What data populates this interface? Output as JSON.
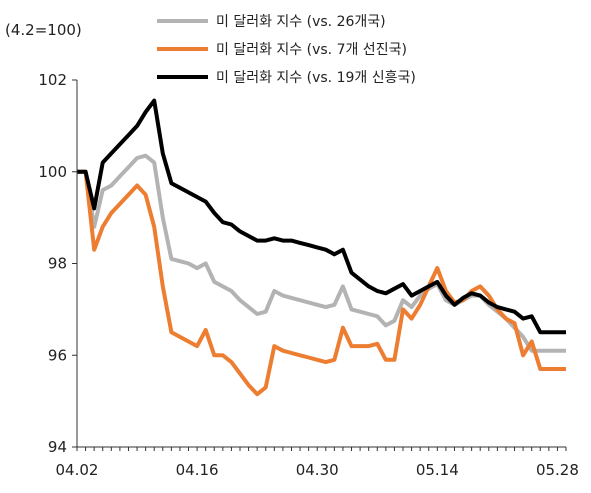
{
  "chart_data": {
    "type": "line",
    "unit_label": "(4.2=100)",
    "x": [
      "04.02",
      "04.03",
      "04.04",
      "04.05",
      "04.06",
      "04.07",
      "04.08",
      "04.09",
      "04.10",
      "04.11",
      "04.12",
      "04.13",
      "04.14",
      "04.15",
      "04.16",
      "04.17",
      "04.18",
      "04.19",
      "04.20",
      "04.21",
      "04.22",
      "04.23",
      "04.24",
      "04.25",
      "04.26",
      "04.27",
      "04.28",
      "04.29",
      "04.30",
      "05.01",
      "05.02",
      "05.03",
      "05.04",
      "05.05",
      "05.06",
      "05.07",
      "05.08",
      "05.09",
      "05.10",
      "05.11",
      "05.12",
      "05.13",
      "05.14",
      "05.15",
      "05.16",
      "05.17",
      "05.18",
      "05.19",
      "05.20",
      "05.21",
      "05.22",
      "05.23",
      "05.24",
      "05.25",
      "05.26",
      "05.27",
      "05.28",
      "05.29"
    ],
    "x_tick_labels": [
      "04.02",
      "04.16",
      "04.30",
      "05.14",
      "05.28"
    ],
    "ylim": [
      94,
      102
    ],
    "y_ticks": [
      94,
      96,
      98,
      100,
      102
    ],
    "series": [
      {
        "name": "미 달러화 지수 (vs. 26개국)",
        "color": "#b3b3b3",
        "values": [
          100.0,
          100.0,
          98.8,
          99.6,
          99.7,
          99.9,
          100.1,
          100.3,
          100.35,
          100.2,
          99.0,
          98.1,
          98.05,
          98.0,
          97.9,
          98.0,
          97.6,
          97.5,
          97.4,
          97.2,
          97.05,
          96.9,
          96.95,
          97.4,
          97.3,
          97.25,
          97.2,
          97.15,
          97.1,
          97.05,
          97.1,
          97.5,
          97.0,
          96.95,
          96.9,
          96.85,
          96.65,
          96.75,
          97.2,
          97.05,
          97.3,
          97.45,
          97.55,
          97.2,
          97.1,
          97.2,
          97.3,
          97.3,
          97.1,
          96.95,
          96.8,
          96.6,
          96.4,
          96.1,
          96.1,
          96.1,
          96.1,
          96.1
        ]
      },
      {
        "name": "미 달러화 지수 (vs. 7개 선진국)",
        "color": "#ed7d31",
        "values": [
          100.0,
          100.0,
          98.3,
          98.8,
          99.1,
          99.3,
          99.5,
          99.7,
          99.5,
          98.8,
          97.5,
          96.5,
          96.4,
          96.3,
          96.2,
          96.55,
          96.0,
          96.0,
          95.85,
          95.6,
          95.35,
          95.15,
          95.3,
          96.2,
          96.1,
          96.05,
          96.0,
          95.95,
          95.9,
          95.85,
          95.9,
          96.6,
          96.2,
          96.2,
          96.2,
          96.25,
          95.9,
          95.9,
          97.0,
          96.8,
          97.1,
          97.5,
          97.9,
          97.4,
          97.15,
          97.2,
          97.4,
          97.5,
          97.3,
          97.0,
          96.8,
          96.7,
          96.0,
          96.3,
          95.7,
          95.7,
          95.7,
          95.7
        ]
      },
      {
        "name": "미 달러화 지수 (vs. 19개 신흥국)",
        "color": "#000000",
        "values": [
          100.0,
          100.0,
          99.2,
          100.2,
          100.4,
          100.6,
          100.8,
          101.0,
          101.3,
          101.55,
          100.4,
          99.75,
          99.65,
          99.55,
          99.45,
          99.35,
          99.1,
          98.9,
          98.85,
          98.7,
          98.6,
          98.5,
          98.5,
          98.55,
          98.5,
          98.5,
          98.45,
          98.4,
          98.35,
          98.3,
          98.2,
          98.3,
          97.8,
          97.65,
          97.5,
          97.4,
          97.35,
          97.45,
          97.55,
          97.3,
          97.4,
          97.5,
          97.6,
          97.3,
          97.1,
          97.25,
          97.35,
          97.3,
          97.15,
          97.05,
          97.0,
          96.95,
          96.8,
          96.85,
          96.5,
          96.5,
          96.5,
          96.5
        ]
      }
    ]
  }
}
